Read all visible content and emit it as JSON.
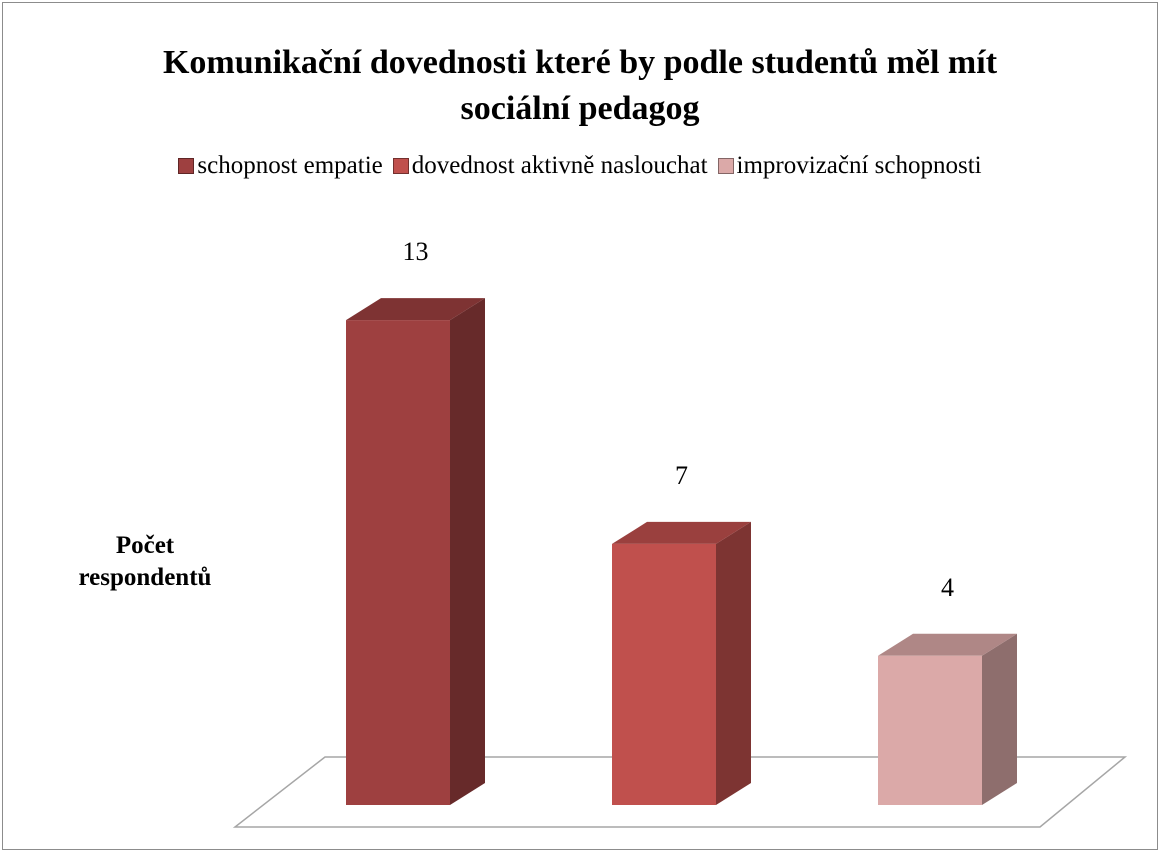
{
  "chart_data": {
    "type": "bar3d",
    "title": "Komunikační dovednosti které by podle studentů měl mít sociální pedagog",
    "y_label": "Počet respondentů",
    "legend": "top",
    "series": [
      {
        "name": "schopnost empatie",
        "color": "#9e4040",
        "values": [
          13
        ]
      },
      {
        "name": "dovednost aktivně naslouchat",
        "color": "#c0504d",
        "values": [
          7
        ]
      },
      {
        "name": "improvizační schopnosti",
        "color": "#dba9a8",
        "values": [
          4
        ]
      }
    ]
  }
}
